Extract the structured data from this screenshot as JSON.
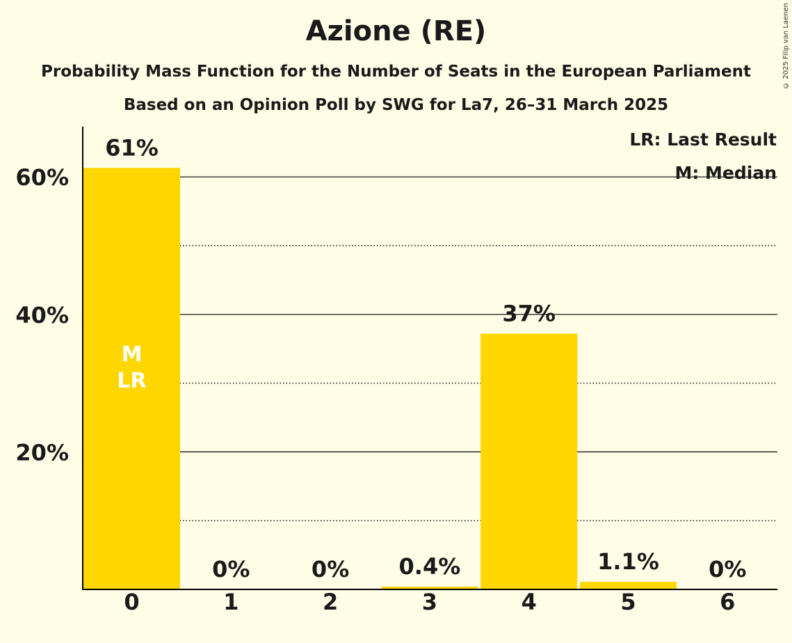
{
  "copyright": "© 2025 Filip van Laenen",
  "chart_data": {
    "type": "bar",
    "title": "Azione (RE)",
    "subtitle": "Probability Mass Function for the Number of Seats in the European Parliament",
    "subtitle2": "Based on an Opinion Poll by SWG for La7, 26–31 March 2025",
    "categories": [
      "0",
      "1",
      "2",
      "3",
      "4",
      "5",
      "6"
    ],
    "values": [
      61.3,
      0,
      0,
      0.4,
      37.2,
      1.1,
      0
    ],
    "value_labels": [
      "61%",
      "0%",
      "0%",
      "0.4%",
      "37%",
      "1.1%",
      "0%"
    ],
    "ylim": [
      0,
      67
    ],
    "yticks": [
      20,
      40,
      60
    ],
    "ytick_labels": [
      "20%",
      "40%",
      "60%"
    ],
    "minor_gridlines": [
      10,
      30,
      50
    ],
    "bar_color": "#FFD700",
    "inside_labels": [
      {
        "category": "0",
        "lines": [
          "M",
          "LR"
        ]
      }
    ],
    "legend": [
      "LR: Last Result",
      "M: Median"
    ],
    "legend_position": "top-right"
  }
}
